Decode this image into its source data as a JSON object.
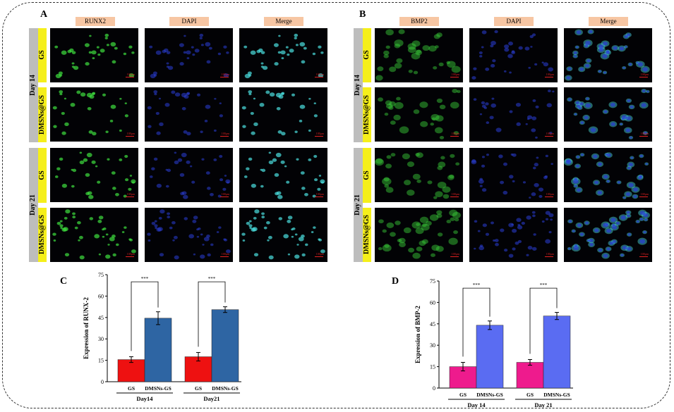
{
  "panels": {
    "A": {
      "label": "A",
      "headers": [
        "RUNX2",
        "DAPI",
        "Merge"
      ]
    },
    "B": {
      "label": "B",
      "headers": [
        "BMP2",
        "DAPI",
        "Merge"
      ]
    }
  },
  "rows": {
    "days": [
      "Day 14",
      "Day 21"
    ],
    "groups": [
      "GS",
      "DMSNs@GS"
    ],
    "scale": "100μm"
  },
  "colors": {
    "runx2": "#3fe03f",
    "bmp2": "#3bd83b",
    "dapi": "#2b3fd8",
    "merge": "#4be0e0",
    "header_bg": "#f7c6a3",
    "gs_bar_C": "#ee1111",
    "dmsns_bar_C": "#2e65a3",
    "gs_bar_D": "#ee1b8d",
    "dmsns_bar_D": "#5a6cf2"
  },
  "chart_data": [
    {
      "panel": "C",
      "type": "bar",
      "title": "",
      "ylabel": "Expression of RUNX-2",
      "ylim": [
        0,
        75
      ],
      "yticks": [
        0,
        15,
        30,
        45,
        60,
        75
      ],
      "groups": [
        "Day14",
        "Day21"
      ],
      "categories": [
        "GS",
        "DMSNs-GS"
      ],
      "values": [
        [
          15.5,
          44.5
        ],
        [
          17.5,
          50.5
        ]
      ],
      "errors": [
        [
          2,
          4.5
        ],
        [
          3,
          2
        ]
      ],
      "significance": [
        "***",
        "***"
      ]
    },
    {
      "panel": "D",
      "type": "bar",
      "title": "",
      "ylabel": "Expression of BMP-2",
      "ylim": [
        0,
        75
      ],
      "yticks": [
        0,
        15,
        30,
        45,
        60,
        75
      ],
      "groups": [
        "Day 14",
        "Day 21"
      ],
      "categories": [
        "GS",
        "DMSNs-GS"
      ],
      "values": [
        [
          15,
          44
        ],
        [
          18,
          50.5
        ]
      ],
      "errors": [
        [
          3,
          3
        ],
        [
          2,
          2.5
        ]
      ],
      "significance": [
        "***",
        "***"
      ]
    }
  ]
}
